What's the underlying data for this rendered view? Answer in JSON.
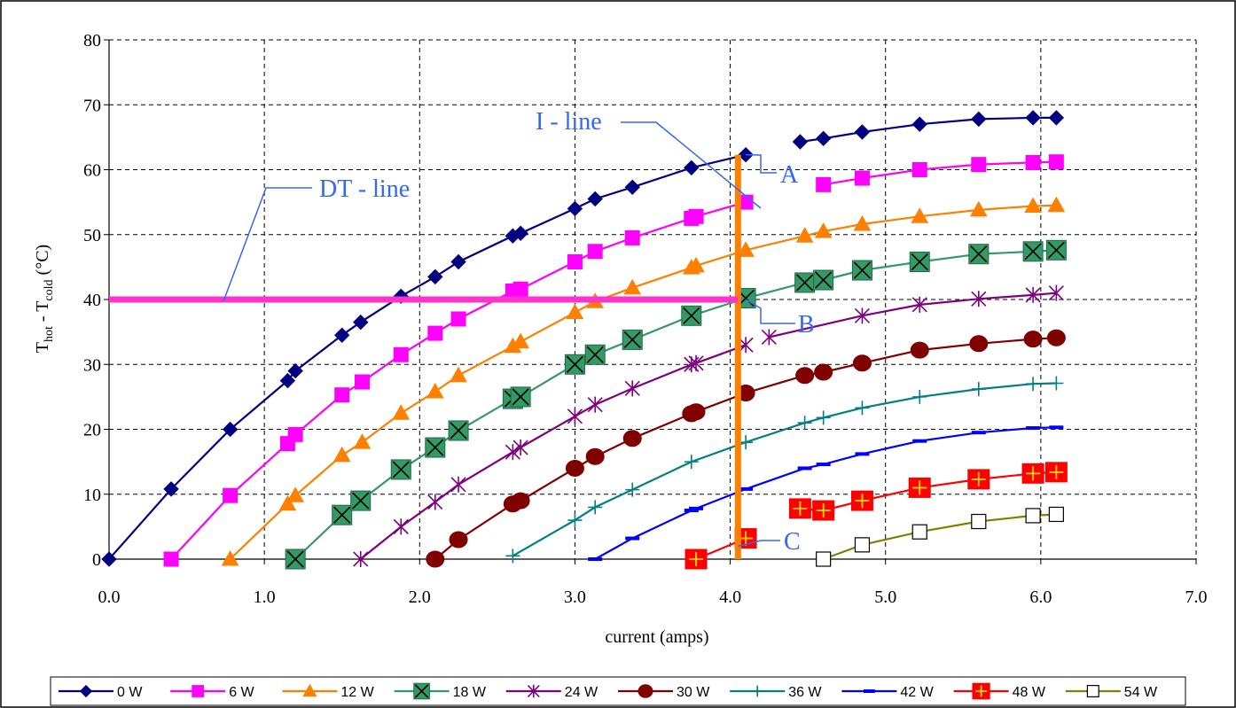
{
  "chart_data": {
    "type": "line",
    "xlabel": "current (amps)",
    "ylabel_main": "T",
    "ylabel_sub1": "hot",
    "ylabel_mid": " - T",
    "ylabel_sub2": "cold",
    "ylabel_unit": " (°C)",
    "xlim": [
      0,
      7
    ],
    "ylim": [
      0,
      80
    ],
    "xticks": [
      0,
      1,
      2,
      3,
      4,
      5,
      6,
      7
    ],
    "xtick_labels": [
      "0.0",
      "1.0",
      "2.0",
      "3.0",
      "4.0",
      "5.0",
      "6.0",
      "7.0"
    ],
    "yticks": [
      0,
      10,
      20,
      30,
      40,
      50,
      60,
      70,
      80
    ],
    "ytick_labels": [
      "0",
      "10",
      "20",
      "30",
      "40",
      "50",
      "60",
      "70",
      "80"
    ],
    "grid": true,
    "legend_position": "bottom",
    "series": [
      {
        "name": "0 W",
        "color": "#000080",
        "marker": "diamond",
        "line": true,
        "points": [
          [
            0.0,
            0
          ],
          [
            0.4,
            10.8
          ],
          [
            0.78,
            20
          ],
          [
            1.15,
            27.5
          ],
          [
            1.2,
            29
          ],
          [
            1.5,
            34.5
          ],
          [
            1.62,
            36.5
          ],
          [
            1.88,
            40.5
          ],
          [
            2.1,
            43.5
          ],
          [
            2.25,
            45.8
          ],
          [
            2.6,
            49.8
          ],
          [
            2.65,
            50.2
          ],
          [
            3.0,
            54
          ],
          [
            3.13,
            55.5
          ],
          [
            3.37,
            57.3
          ],
          [
            3.75,
            60.3
          ],
          [
            4.1,
            62.3
          ]
        ],
        "points2": [
          [
            4.45,
            64.3
          ],
          [
            4.6,
            64.8
          ],
          [
            4.85,
            65.8
          ],
          [
            5.22,
            67
          ],
          [
            5.6,
            67.8
          ],
          [
            5.95,
            68
          ],
          [
            6.1,
            68
          ]
        ]
      },
      {
        "name": "6 W",
        "color": "#FF00FF",
        "marker": "square",
        "line": true,
        "points": [
          [
            0.4,
            0
          ],
          [
            0.78,
            9.8
          ],
          [
            1.15,
            17.8
          ],
          [
            1.2,
            19.2
          ],
          [
            1.5,
            25.3
          ],
          [
            1.63,
            27.3
          ],
          [
            1.88,
            31.5
          ],
          [
            2.1,
            34.8
          ],
          [
            2.25,
            37
          ],
          [
            2.6,
            41.3
          ],
          [
            2.65,
            41.6
          ],
          [
            3.0,
            45.8
          ],
          [
            3.13,
            47.4
          ],
          [
            3.37,
            49.5
          ],
          [
            3.75,
            52.5
          ],
          [
            3.78,
            52.8
          ],
          [
            4.1,
            55
          ]
        ],
        "points2": [
          [
            4.6,
            57.7
          ],
          [
            4.85,
            58.7
          ],
          [
            5.22,
            60
          ],
          [
            5.6,
            60.8
          ],
          [
            5.95,
            61.1
          ],
          [
            6.1,
            61.2
          ]
        ]
      },
      {
        "name": "12 W",
        "color": "#FF8000",
        "marker": "triangle",
        "line": true,
        "points": [
          [
            0.78,
            0
          ],
          [
            1.15,
            8.5
          ],
          [
            1.2,
            9.8
          ],
          [
            1.5,
            16
          ],
          [
            1.63,
            18
          ],
          [
            1.88,
            22.5
          ],
          [
            2.1,
            25.8
          ],
          [
            2.25,
            28.3
          ],
          [
            2.6,
            32.8
          ],
          [
            2.65,
            33.5
          ],
          [
            3.0,
            38
          ],
          [
            3.13,
            39.7
          ],
          [
            3.37,
            41.8
          ],
          [
            3.75,
            44.9
          ],
          [
            3.78,
            45.2
          ],
          [
            4.1,
            47.6
          ],
          [
            4.48,
            49.8
          ],
          [
            4.6,
            50.5
          ],
          [
            4.85,
            51.6
          ],
          [
            5.22,
            52.8
          ],
          [
            5.6,
            53.8
          ],
          [
            5.95,
            54.4
          ],
          [
            6.1,
            54.5
          ]
        ]
      },
      {
        "name": "18 W",
        "color": "#339966",
        "marker": "xsquare",
        "line": true,
        "points": [
          [
            1.2,
            0
          ],
          [
            1.5,
            6.8
          ],
          [
            1.62,
            9
          ],
          [
            1.88,
            13.8
          ],
          [
            2.1,
            17.2
          ],
          [
            2.25,
            19.8
          ],
          [
            2.6,
            24.7
          ],
          [
            2.65,
            25
          ],
          [
            3.0,
            30
          ],
          [
            3.13,
            31.5
          ],
          [
            3.37,
            33.8
          ],
          [
            3.75,
            37.5
          ],
          [
            4.1,
            40.2
          ],
          [
            4.48,
            42.6
          ],
          [
            4.6,
            43
          ],
          [
            4.85,
            44.5
          ],
          [
            5.22,
            45.8
          ],
          [
            5.6,
            47
          ],
          [
            5.95,
            47.4
          ],
          [
            6.1,
            47.6
          ]
        ]
      },
      {
        "name": "24 W",
        "color": "#800080",
        "marker": "star",
        "line": true,
        "points": [
          [
            1.62,
            0
          ],
          [
            1.88,
            5
          ],
          [
            2.1,
            8.8
          ],
          [
            2.25,
            11.5
          ],
          [
            2.6,
            16.5
          ],
          [
            2.65,
            17.2
          ],
          [
            3.0,
            22
          ],
          [
            3.13,
            23.8
          ],
          [
            3.37,
            26.3
          ],
          [
            3.75,
            30
          ],
          [
            3.78,
            30.2
          ],
          [
            4.1,
            33
          ]
        ],
        "points2": [
          [
            4.25,
            34.2
          ],
          [
            4.85,
            37.5
          ],
          [
            5.22,
            39.2
          ],
          [
            5.6,
            40.1
          ],
          [
            5.95,
            40.7
          ],
          [
            6.1,
            41
          ]
        ]
      },
      {
        "name": "30 W",
        "color": "#800000",
        "marker": "circle",
        "line": true,
        "points": [
          [
            2.1,
            0
          ],
          [
            2.25,
            3
          ],
          [
            2.6,
            8.5
          ],
          [
            2.65,
            9
          ],
          [
            3.0,
            14
          ],
          [
            3.13,
            15.8
          ],
          [
            3.37,
            18.6
          ],
          [
            3.75,
            22.4
          ],
          [
            3.78,
            22.7
          ],
          [
            4.1,
            25.6
          ],
          [
            4.48,
            28.3
          ],
          [
            4.6,
            28.8
          ],
          [
            4.85,
            30.2
          ],
          [
            5.22,
            32.2
          ],
          [
            5.6,
            33.2
          ],
          [
            5.95,
            33.9
          ],
          [
            6.1,
            34.1
          ]
        ]
      },
      {
        "name": "36 W",
        "color": "#008080",
        "marker": "plus",
        "line": true,
        "points": [
          [
            2.6,
            0.5
          ],
          [
            3.0,
            6
          ],
          [
            3.13,
            8
          ],
          [
            3.37,
            10.7
          ],
          [
            3.75,
            15
          ],
          [
            4.1,
            18
          ],
          [
            4.48,
            21
          ],
          [
            4.6,
            21.8
          ],
          [
            4.85,
            23.3
          ],
          [
            5.22,
            25
          ],
          [
            5.6,
            26.2
          ],
          [
            5.95,
            27
          ],
          [
            6.1,
            27.1
          ]
        ]
      },
      {
        "name": "42 W",
        "color": "#0000FF",
        "marker": "dash",
        "line": true,
        "points": [
          [
            3.13,
            0
          ],
          [
            3.37,
            3.2
          ],
          [
            3.75,
            7.5
          ],
          [
            3.78,
            7.8
          ],
          [
            4.1,
            10.8
          ],
          [
            4.48,
            14
          ],
          [
            4.6,
            14.6
          ],
          [
            4.85,
            16.2
          ],
          [
            5.22,
            18.2
          ],
          [
            5.6,
            19.5
          ],
          [
            5.95,
            20.2
          ],
          [
            6.1,
            20.3
          ]
        ]
      },
      {
        "name": "48 W",
        "color": "#FF0000",
        "marker": "redsquare",
        "line": true,
        "points": [
          [
            3.78,
            0
          ],
          [
            4.1,
            3.2
          ]
        ],
        "points2": [
          [
            4.45,
            7.8
          ],
          [
            4.6,
            7.5
          ],
          [
            4.85,
            9
          ],
          [
            5.22,
            11
          ],
          [
            5.6,
            12.3
          ],
          [
            5.95,
            13.2
          ],
          [
            6.1,
            13.4
          ]
        ]
      },
      {
        "name": "54 W",
        "color": "#808000",
        "marker": "opensquare",
        "line": true,
        "points": [
          [
            4.6,
            0
          ],
          [
            4.85,
            2.2
          ],
          [
            5.22,
            4.2
          ],
          [
            5.6,
            5.8
          ],
          [
            5.95,
            6.7
          ],
          [
            6.1,
            6.9
          ]
        ]
      }
    ],
    "annotations": {
      "i_line_label": "I - line",
      "dt_line_label": "DT - line",
      "point_a": "A",
      "point_b": "B",
      "point_c": "C",
      "i_line_x": 4.05,
      "dt_line_y": 40
    },
    "colors": {
      "i_line": "#FF8000",
      "dt_line": "#FF33CC",
      "annotation_text": "#3366FF"
    }
  }
}
